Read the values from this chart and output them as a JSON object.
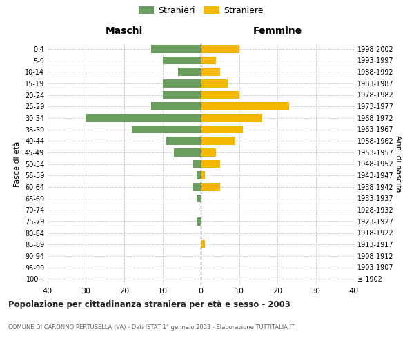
{
  "age_groups": [
    "100+",
    "95-99",
    "90-94",
    "85-89",
    "80-84",
    "75-79",
    "70-74",
    "65-69",
    "60-64",
    "55-59",
    "50-54",
    "45-49",
    "40-44",
    "35-39",
    "30-34",
    "25-29",
    "20-24",
    "15-19",
    "10-14",
    "5-9",
    "0-4"
  ],
  "anni_nascita": [
    "≤ 1902",
    "1903-1907",
    "1908-1912",
    "1913-1917",
    "1918-1922",
    "1923-1927",
    "1928-1932",
    "1933-1937",
    "1938-1942",
    "1943-1947",
    "1948-1952",
    "1953-1957",
    "1958-1962",
    "1963-1967",
    "1968-1972",
    "1973-1977",
    "1978-1982",
    "1983-1987",
    "1988-1992",
    "1993-1997",
    "1998-2002"
  ],
  "maschi": [
    0,
    0,
    0,
    0,
    0,
    1,
    0,
    1,
    2,
    1,
    2,
    7,
    9,
    18,
    30,
    13,
    10,
    10,
    6,
    10,
    13
  ],
  "femmine": [
    0,
    0,
    0,
    1,
    0,
    0,
    0,
    0,
    5,
    1,
    5,
    4,
    9,
    11,
    16,
    23,
    10,
    7,
    5,
    4,
    10
  ],
  "color_maschi": "#6a9e5e",
  "color_femmine": "#f5b800",
  "xlim": 40,
  "title": "Popolazione per cittadinanza straniera per età e sesso - 2003",
  "subtitle": "COMUNE DI CARONNO PERTUSELLA (VA) - Dati ISTAT 1° gennaio 2003 - Elaborazione TUTTITALIA.IT",
  "ylabel_left": "Fasce di età",
  "ylabel_right": "Anni di nascita",
  "legend_maschi": "Stranieri",
  "legend_femmine": "Straniere",
  "header_left": "Maschi",
  "header_right": "Femmine",
  "background_color": "#ffffff",
  "grid_color": "#cccccc",
  "center_line_color": "#777777"
}
